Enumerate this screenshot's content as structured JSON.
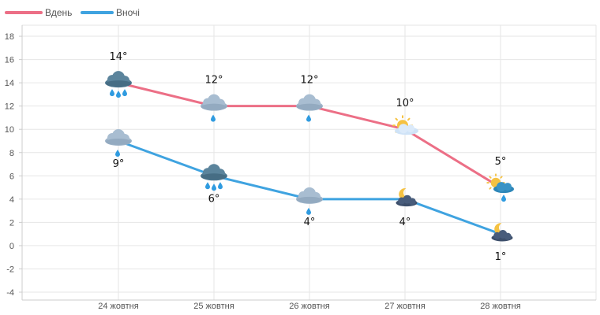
{
  "chart_data": {
    "type": "line",
    "categories": [
      "24 жовтня",
      "25 жовтня",
      "26 жовтня",
      "27 жовтня",
      "28 жовтня"
    ],
    "series": [
      {
        "name": "Вдень",
        "color": "#ec6f86",
        "values": [
          14,
          12,
          12,
          10,
          5
        ],
        "labels": [
          "14°",
          "12°",
          "12°",
          "10°",
          "5°"
        ],
        "icons": [
          "heavy-rain-cloud-icon",
          "light-rain-cloud-icon",
          "light-rain-cloud-icon",
          "sun-behind-cloud-icon",
          "sun-behind-rain-cloud-icon"
        ]
      },
      {
        "name": "Вночі",
        "color": "#3fa3e0",
        "values": [
          9,
          6,
          4,
          4,
          1
        ],
        "labels": [
          "9°",
          "6°",
          "4°",
          "4°",
          "1°"
        ],
        "icons": [
          "light-rain-cloud-icon",
          "heavy-rain-cloud-icon",
          "light-rain-cloud-icon",
          "moon-behind-cloud-icon",
          "moon-behind-cloud-icon"
        ]
      }
    ],
    "yticks": [
      18,
      16,
      14,
      12,
      10,
      8,
      6,
      4,
      2,
      0,
      -2,
      -4
    ],
    "ytick_labels": [
      "18",
      "16",
      "14",
      "12",
      "10",
      "8",
      "6",
      "4",
      "2",
      "0",
      "-2",
      "-4"
    ],
    "ylim": [
      -4,
      18
    ],
    "grid": true,
    "legend": "top-left"
  }
}
